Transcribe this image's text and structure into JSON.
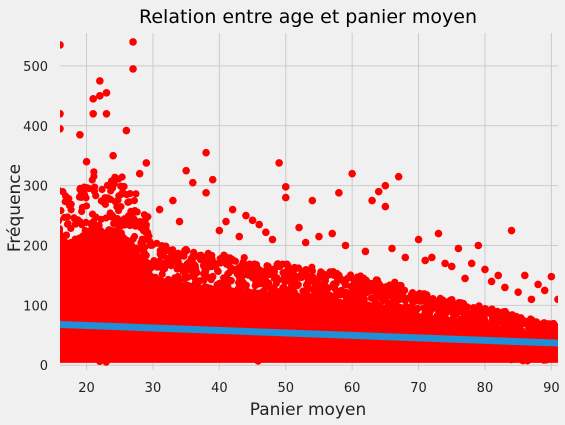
{
  "chart_data": {
    "type": "scatter",
    "title": "Relation entre age et panier moyen",
    "xlabel": "Panier moyen",
    "ylabel": "Fréquence",
    "xlim": [
      16,
      91
    ],
    "ylim": [
      -8,
      555
    ],
    "x_ticks": [
      20,
      30,
      40,
      50,
      60,
      70,
      80,
      90
    ],
    "y_ticks": [
      0,
      100,
      200,
      300,
      400,
      500
    ],
    "grid": true,
    "legend": "none",
    "colors": {
      "points": "#ff0000",
      "regression": "#1f8fd6",
      "background": "#f0f0f0"
    },
    "regression_line": {
      "x": [
        16,
        91
      ],
      "y": [
        68,
        37
      ]
    },
    "outliers": [
      {
        "x": 16,
        "y": 535
      },
      {
        "x": 16,
        "y": 420
      },
      {
        "x": 16,
        "y": 395
      },
      {
        "x": 19,
        "y": 385
      },
      {
        "x": 20,
        "y": 340
      },
      {
        "x": 21,
        "y": 445
      },
      {
        "x": 22,
        "y": 475
      },
      {
        "x": 22,
        "y": 450
      },
      {
        "x": 21,
        "y": 420
      },
      {
        "x": 23,
        "y": 455
      },
      {
        "x": 23,
        "y": 420
      },
      {
        "x": 24,
        "y": 350
      },
      {
        "x": 26,
        "y": 392
      },
      {
        "x": 27,
        "y": 540
      },
      {
        "x": 27,
        "y": 495
      },
      {
        "x": 29,
        "y": 338
      },
      {
        "x": 28,
        "y": 320
      },
      {
        "x": 33,
        "y": 275
      },
      {
        "x": 35,
        "y": 325
      },
      {
        "x": 36,
        "y": 305
      },
      {
        "x": 38,
        "y": 355
      },
      {
        "x": 39,
        "y": 310
      },
      {
        "x": 38,
        "y": 288
      },
      {
        "x": 41,
        "y": 240
      },
      {
        "x": 42,
        "y": 260
      },
      {
        "x": 44,
        "y": 250
      },
      {
        "x": 45,
        "y": 242
      },
      {
        "x": 47,
        "y": 222
      },
      {
        "x": 49,
        "y": 338
      },
      {
        "x": 50,
        "y": 298
      },
      {
        "x": 50,
        "y": 280
      },
      {
        "x": 54,
        "y": 275
      },
      {
        "x": 55,
        "y": 215
      },
      {
        "x": 58,
        "y": 288
      },
      {
        "x": 60,
        "y": 320
      },
      {
        "x": 63,
        "y": 275
      },
      {
        "x": 64,
        "y": 290
      },
      {
        "x": 65,
        "y": 300
      },
      {
        "x": 67,
        "y": 315
      },
      {
        "x": 65,
        "y": 265
      },
      {
        "x": 70,
        "y": 210
      },
      {
        "x": 72,
        "y": 180
      },
      {
        "x": 73,
        "y": 220
      },
      {
        "x": 76,
        "y": 195
      },
      {
        "x": 78,
        "y": 170
      },
      {
        "x": 79,
        "y": 200
      },
      {
        "x": 82,
        "y": 150
      },
      {
        "x": 84,
        "y": 225
      },
      {
        "x": 86,
        "y": 150
      },
      {
        "x": 88,
        "y": 135
      },
      {
        "x": 89,
        "y": 125
      },
      {
        "x": 90,
        "y": 148
      },
      {
        "x": 91,
        "y": 110
      },
      {
        "x": 87,
        "y": 110
      },
      {
        "x": 85,
        "y": 122
      },
      {
        "x": 80,
        "y": 160
      },
      {
        "x": 75,
        "y": 165
      },
      {
        "x": 68,
        "y": 180
      },
      {
        "x": 62,
        "y": 190
      },
      {
        "x": 57,
        "y": 220
      },
      {
        "x": 52,
        "y": 230
      },
      {
        "x": 46,
        "y": 235
      },
      {
        "x": 40,
        "y": 225
      },
      {
        "x": 34,
        "y": 240
      },
      {
        "x": 31,
        "y": 260
      },
      {
        "x": 43,
        "y": 215
      },
      {
        "x": 48,
        "y": 210
      },
      {
        "x": 53,
        "y": 205
      },
      {
        "x": 59,
        "y": 200
      },
      {
        "x": 66,
        "y": 195
      },
      {
        "x": 71,
        "y": 175
      },
      {
        "x": 74,
        "y": 170
      },
      {
        "x": 77,
        "y": 145
      },
      {
        "x": 81,
        "y": 140
      },
      {
        "x": 83,
        "y": 130
      }
    ],
    "cloud": {
      "description_source": "dense band of points per age",
      "columns": [
        {
          "x": 16,
          "max": 300
        },
        {
          "x": 17,
          "max": 290
        },
        {
          "x": 18,
          "max": 295
        },
        {
          "x": 19,
          "max": 300
        },
        {
          "x": 20,
          "max": 315
        },
        {
          "x": 21,
          "max": 330
        },
        {
          "x": 22,
          "max": 300
        },
        {
          "x": 23,
          "max": 320
        },
        {
          "x": 24,
          "max": 320
        },
        {
          "x": 25,
          "max": 320
        },
        {
          "x": 26,
          "max": 300
        },
        {
          "x": 27,
          "max": 290
        },
        {
          "x": 28,
          "max": 260
        },
        {
          "x": 29,
          "max": 255
        },
        {
          "x": 30,
          "max": 210
        },
        {
          "x": 31,
          "max": 205
        },
        {
          "x": 32,
          "max": 200
        },
        {
          "x": 33,
          "max": 195
        },
        {
          "x": 34,
          "max": 190
        },
        {
          "x": 35,
          "max": 195
        },
        {
          "x": 36,
          "max": 190
        },
        {
          "x": 37,
          "max": 185
        },
        {
          "x": 38,
          "max": 190
        },
        {
          "x": 39,
          "max": 185
        },
        {
          "x": 40,
          "max": 180
        },
        {
          "x": 41,
          "max": 185
        },
        {
          "x": 42,
          "max": 180
        },
        {
          "x": 43,
          "max": 175
        },
        {
          "x": 44,
          "max": 180
        },
        {
          "x": 45,
          "max": 175
        },
        {
          "x": 46,
          "max": 175
        },
        {
          "x": 47,
          "max": 170
        },
        {
          "x": 48,
          "max": 175
        },
        {
          "x": 49,
          "max": 170
        },
        {
          "x": 50,
          "max": 170
        },
        {
          "x": 51,
          "max": 165
        },
        {
          "x": 52,
          "max": 165
        },
        {
          "x": 53,
          "max": 160
        },
        {
          "x": 54,
          "max": 165
        },
        {
          "x": 55,
          "max": 160
        },
        {
          "x": 56,
          "max": 155
        },
        {
          "x": 57,
          "max": 160
        },
        {
          "x": 58,
          "max": 155
        },
        {
          "x": 59,
          "max": 150
        },
        {
          "x": 60,
          "max": 155
        },
        {
          "x": 61,
          "max": 150
        },
        {
          "x": 62,
          "max": 150
        },
        {
          "x": 63,
          "max": 145
        },
        {
          "x": 64,
          "max": 145
        },
        {
          "x": 65,
          "max": 140
        },
        {
          "x": 66,
          "max": 140
        },
        {
          "x": 67,
          "max": 135
        },
        {
          "x": 68,
          "max": 130
        },
        {
          "x": 69,
          "max": 125
        },
        {
          "x": 70,
          "max": 120
        },
        {
          "x": 71,
          "max": 120
        },
        {
          "x": 72,
          "max": 115
        },
        {
          "x": 73,
          "max": 115
        },
        {
          "x": 74,
          "max": 110
        },
        {
          "x": 75,
          "max": 110
        },
        {
          "x": 76,
          "max": 105
        },
        {
          "x": 77,
          "max": 105
        },
        {
          "x": 78,
          "max": 100
        },
        {
          "x": 79,
          "max": 100
        },
        {
          "x": 80,
          "max": 95
        },
        {
          "x": 81,
          "max": 95
        },
        {
          "x": 82,
          "max": 90
        },
        {
          "x": 83,
          "max": 90
        },
        {
          "x": 84,
          "max": 85
        },
        {
          "x": 85,
          "max": 85
        },
        {
          "x": 86,
          "max": 80
        },
        {
          "x": 87,
          "max": 80
        },
        {
          "x": 88,
          "max": 75
        },
        {
          "x": 89,
          "max": 75
        },
        {
          "x": 90,
          "max": 70
        },
        {
          "x": 91,
          "max": 70
        }
      ],
      "min": 4
    }
  }
}
